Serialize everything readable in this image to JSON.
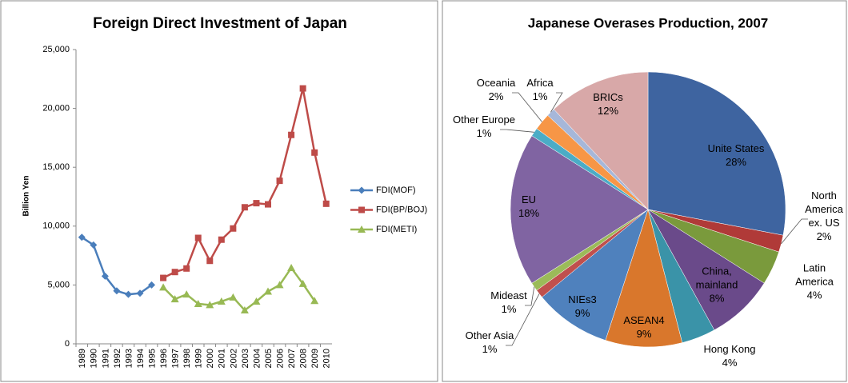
{
  "chart_data": [
    {
      "type": "line",
      "title": "Foreign Direct Investment of Japan",
      "y_label": "Billion Yen",
      "categories": [
        "1989",
        "1990",
        "1991",
        "1992",
        "1993",
        "1994",
        "1995",
        "1996",
        "1997",
        "1998",
        "1999",
        "2000",
        "2001",
        "2002",
        "2003",
        "2004",
        "2005",
        "2006",
        "2007",
        "2008",
        "2009",
        "2010"
      ],
      "series": [
        {
          "name": "FDI(MOF)",
          "color": "#4a7ebb",
          "marker": "diamond",
          "values": [
            9050,
            8400,
            5750,
            4500,
            4200,
            4300,
            5000,
            null,
            null,
            null,
            null,
            null,
            null,
            null,
            null,
            null,
            null,
            null,
            null,
            null,
            null,
            null
          ]
        },
        {
          "name": "FDI(BP/BOJ)",
          "color": "#be4b48",
          "marker": "square",
          "values": [
            null,
            null,
            null,
            null,
            null,
            null,
            null,
            5600,
            6100,
            6400,
            9000,
            7050,
            8850,
            9800,
            11600,
            11950,
            11850,
            13850,
            17750,
            21700,
            16250,
            11900
          ]
        },
        {
          "name": "FDI(METI)",
          "color": "#98b954",
          "marker": "triangle",
          "values": [
            null,
            null,
            null,
            null,
            null,
            null,
            null,
            4800,
            3800,
            4200,
            3400,
            3300,
            3600,
            3950,
            2850,
            3600,
            4450,
            5000,
            6450,
            5100,
            3650,
            null
          ]
        }
      ],
      "ylim": [
        0,
        25000
      ],
      "yticks": [
        0,
        {
          "value": 5000,
          "label": "5,000"
        },
        {
          "value": 10000,
          "label": "10,000"
        },
        {
          "value": 15000,
          "label": "15,000"
        },
        {
          "value": 20000,
          "label": "20,000"
        },
        {
          "value": 25000,
          "label": "25,000"
        }
      ],
      "grid": false,
      "legend": "right"
    },
    {
      "type": "pie",
      "title": "Japanese Overases Production, 2007",
      "categories": [
        "Unite States",
        "North America ex. US",
        "Latin America",
        "China, mainland",
        "Hong Kong",
        "ASEAN4",
        "NIEs3",
        "Other Asia",
        "Mideast",
        "EU",
        "Other Europe",
        "Oceania",
        "Africa",
        "BRICs"
      ],
      "values": [
        28,
        2,
        4,
        8,
        4,
        9,
        9,
        1,
        1,
        18,
        1,
        2,
        1,
        12
      ],
      "value_labels": [
        "28%",
        "2%",
        "4%",
        "8%",
        "4%",
        "9%",
        "9%",
        "1%",
        "1%",
        "18%",
        "1%",
        "2%",
        "1%",
        "12%"
      ],
      "colors": [
        "#3e64a0",
        "#b03a38",
        "#7a9a3c",
        "#6a4a8a",
        "#3a93a8",
        "#d9772c",
        "#4f81bd",
        "#c0504d",
        "#9bbb59",
        "#8064a2",
        "#4bacc6",
        "#f79646",
        "#a6b7d9",
        "#d8a8a8"
      ]
    }
  ]
}
